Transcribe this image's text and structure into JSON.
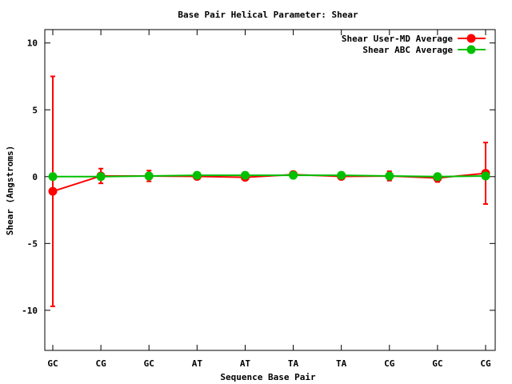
{
  "chart_data": {
    "type": "line",
    "title": "Base Pair Helical Parameter: Shear",
    "xlabel": "Sequence Base Pair",
    "ylabel": "Shear (Angstroms)",
    "ylim": [
      -13,
      11
    ],
    "yticks": [
      -10,
      -5,
      0,
      5,
      10
    ],
    "categories": [
      "GC",
      "CG",
      "GC",
      "AT",
      "AT",
      "TA",
      "TA",
      "CG",
      "GC",
      "CG"
    ],
    "legend_position": "top-right",
    "grid": false,
    "series": [
      {
        "name": "Shear User-MD Average",
        "color": "#ff0000",
        "values": [
          -1.1,
          0.05,
          0.05,
          0.02,
          -0.05,
          0.15,
          0.02,
          0.05,
          -0.1,
          0.25
        ],
        "error": [
          8.6,
          0.55,
          0.4,
          0.2,
          0.2,
          0.2,
          0.2,
          0.35,
          0.3,
          2.3
        ]
      },
      {
        "name": "Shear ABC Average",
        "color": "#00c000",
        "values": [
          0.0,
          0.0,
          0.05,
          0.1,
          0.1,
          0.1,
          0.1,
          0.05,
          0.0,
          0.05
        ]
      }
    ]
  }
}
